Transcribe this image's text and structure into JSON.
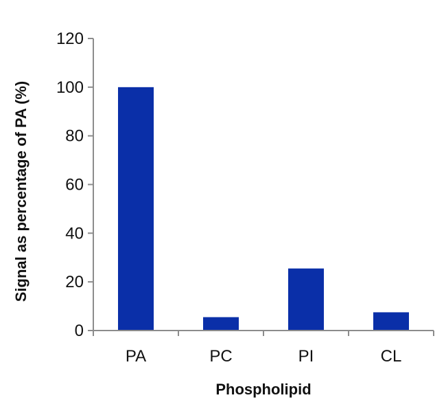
{
  "chart_data": {
    "type": "bar",
    "categories": [
      "PA",
      "PC",
      "PI",
      "CL"
    ],
    "values": [
      100,
      5.5,
      25.5,
      7.5
    ],
    "xlabel": "Phospholipid",
    "ylabel": "Signal as percentage of PA (%)",
    "ylim": [
      0,
      120
    ],
    "yticks": [
      0,
      20,
      40,
      60,
      80,
      100,
      120
    ],
    "grid": false,
    "legend": "none",
    "bar_color": "#0a2fa8"
  }
}
